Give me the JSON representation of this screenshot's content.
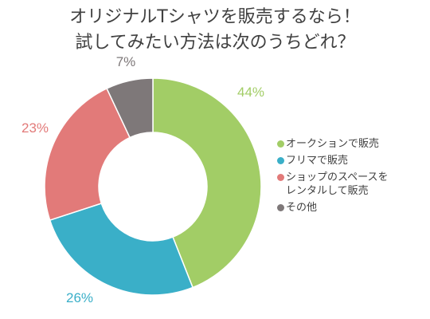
{
  "chart_data": {
    "type": "pie",
    "title_lines": [
      "オリジナルTシャツを販売するなら！",
      "試してみたい方法は次のうちどれ？"
    ],
    "categories": [
      "オークションで販売",
      "フリマで販売",
      "ショップのスペースを\nレンタルして販売",
      "その他"
    ],
    "values": [
      44,
      26,
      23,
      7
    ],
    "value_labels": [
      "44%",
      "26%",
      "23%",
      "7%"
    ],
    "colors": [
      "#a2cd66",
      "#3aafc8",
      "#e27a79",
      "#7e7879"
    ],
    "label_colors": [
      "#a2cd66",
      "#3aafc8",
      "#e27a79",
      "#7e7879"
    ],
    "donut": true,
    "legend_position": "right"
  }
}
